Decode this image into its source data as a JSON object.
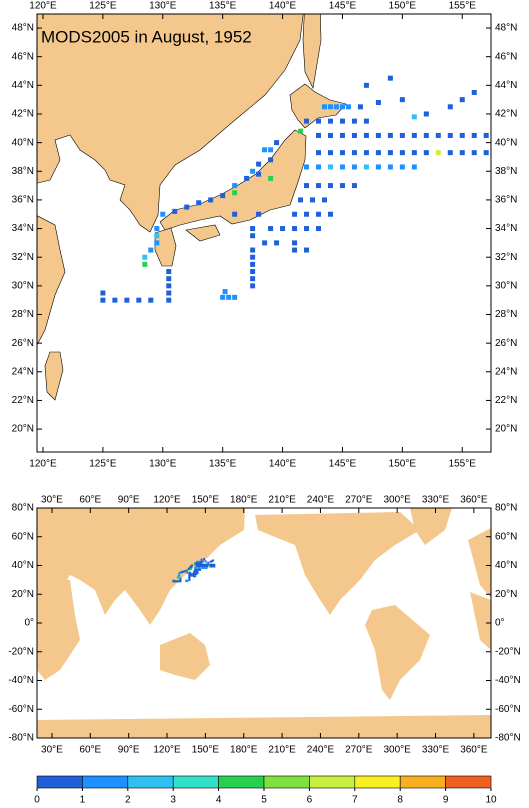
{
  "title": "MODS2005 in August, 1952",
  "top_map": {
    "lon_range": [
      119.5,
      157.4
    ],
    "lat_range": [
      18.4,
      48.98
    ],
    "lon_ticks": [
      {
        "value": 120,
        "label": "120°E"
      },
      {
        "value": 125,
        "label": "125°E"
      },
      {
        "value": 130,
        "label": "130°E"
      },
      {
        "value": 135,
        "label": "135°E"
      },
      {
        "value": 140,
        "label": "140°E"
      },
      {
        "value": 145,
        "label": "145°E"
      },
      {
        "value": 150,
        "label": "150°E"
      },
      {
        "value": 155,
        "label": "155°E"
      }
    ],
    "lat_ticks": [
      {
        "value": 20,
        "label": "20°N"
      },
      {
        "value": 22,
        "label": "22°N"
      },
      {
        "value": 24,
        "label": "24°N"
      },
      {
        "value": 26,
        "label": "26°N"
      },
      {
        "value": 28,
        "label": "28°N"
      },
      {
        "value": 30,
        "label": "30°N"
      },
      {
        "value": 32,
        "label": "32°N"
      },
      {
        "value": 34,
        "label": "34°N"
      },
      {
        "value": 36,
        "label": "36°N"
      },
      {
        "value": 38,
        "label": "38°N"
      },
      {
        "value": 40,
        "label": "40°N"
      },
      {
        "value": 42,
        "label": "42°N"
      },
      {
        "value": 44,
        "label": "44°N"
      },
      {
        "value": 46,
        "label": "46°N"
      },
      {
        "value": 48,
        "label": "48°N"
      }
    ]
  },
  "bottom_map": {
    "lon_range": [
      18.3,
      373.4
    ],
    "lat_range": [
      -80,
      80
    ],
    "lon_ticks": [
      {
        "value": 30,
        "label": "30°E"
      },
      {
        "value": 60,
        "label": "60°E"
      },
      {
        "value": 90,
        "label": "90°E"
      },
      {
        "value": 120,
        "label": "120°E"
      },
      {
        "value": 150,
        "label": "150°E"
      },
      {
        "value": 180,
        "label": "180°E"
      },
      {
        "value": 210,
        "label": "210°E"
      },
      {
        "value": 240,
        "label": "240°E"
      },
      {
        "value": 270,
        "label": "270°E"
      },
      {
        "value": 300,
        "label": "300°E"
      },
      {
        "value": 330,
        "label": "330°E"
      },
      {
        "value": 360,
        "label": "360°E"
      }
    ],
    "lat_ticks": [
      {
        "value": -80,
        "label": "-80°N"
      },
      {
        "value": -60,
        "label": "-60°N"
      },
      {
        "value": -40,
        "label": "-40°N"
      },
      {
        "value": -20,
        "label": "-20°N"
      },
      {
        "value": 0,
        "label": "0°"
      },
      {
        "value": 20,
        "label": "20°N"
      },
      {
        "value": 40,
        "label": "40°N"
      },
      {
        "value": 60,
        "label": "60°N"
      },
      {
        "value": 80,
        "label": "80°N"
      }
    ]
  },
  "colorbar": {
    "levels": [
      0,
      1,
      2,
      3,
      4,
      5,
      6,
      7,
      8,
      9,
      10
    ],
    "colors": [
      "#1f5fd8",
      "#1e90ff",
      "#30c0f0",
      "#30e0c8",
      "#28d050",
      "#80e040",
      "#c8f040",
      "#f8f020",
      "#f8b020",
      "#f06020"
    ]
  },
  "observations": [
    [
      143,
      40.5,
      0.5
    ],
    [
      144,
      40.5,
      0.5
    ],
    [
      145,
      40.5,
      0.5
    ],
    [
      146,
      40.5,
      0.5
    ],
    [
      147,
      40.5,
      0.5
    ],
    [
      148,
      40.5,
      0.5
    ],
    [
      149,
      40.5,
      0.5
    ],
    [
      150,
      40.5,
      0.5
    ],
    [
      151,
      40.5,
      0.5
    ],
    [
      152,
      40.5,
      0.5
    ],
    [
      153,
      40.5,
      0.5
    ],
    [
      154,
      40.5,
      0.5
    ],
    [
      155,
      40.5,
      0.5
    ],
    [
      156,
      40.5,
      0.5
    ],
    [
      157,
      40.5,
      0.5
    ],
    [
      143,
      39.3,
      0.5
    ],
    [
      144,
      39.3,
      0.5
    ],
    [
      145,
      39.3,
      0.5
    ],
    [
      146,
      39.3,
      0.5
    ],
    [
      147,
      39.3,
      0.5
    ],
    [
      148,
      39.3,
      0.5
    ],
    [
      149,
      39.3,
      0.5
    ],
    [
      150,
      39.3,
      0.5
    ],
    [
      151,
      39.3,
      0.5
    ],
    [
      152,
      39.3,
      0.5
    ],
    [
      153,
      39.3,
      6.5
    ],
    [
      154,
      39.3,
      0.5
    ],
    [
      155,
      39.3,
      0.5
    ],
    [
      156,
      39.3,
      0.5
    ],
    [
      157,
      39.3,
      0.5
    ],
    [
      142,
      38.3,
      1.5
    ],
    [
      143,
      38.3,
      1.5
    ],
    [
      144,
      38.3,
      2.5
    ],
    [
      145,
      38.3,
      1.5
    ],
    [
      146,
      38.3,
      1.5
    ],
    [
      147,
      38.3,
      2.5
    ],
    [
      148,
      38.3,
      1.5
    ],
    [
      149,
      38.3,
      1.5
    ],
    [
      150,
      38.3,
      1.5
    ],
    [
      151,
      38.3,
      1.5
    ],
    [
      143.5,
      42.5,
      1.5
    ],
    [
      144,
      42.5,
      1.5
    ],
    [
      144.5,
      42.5,
      1.5
    ],
    [
      145,
      42.5,
      1.5
    ],
    [
      145.5,
      42.5,
      1.5
    ],
    [
      146.5,
      42.5,
      0.5
    ],
    [
      142,
      41.5,
      0.5
    ],
    [
      143,
      41.5,
      0.5
    ],
    [
      144,
      41.5,
      0.5
    ],
    [
      145,
      41.5,
      0.5
    ],
    [
      146,
      41.5,
      0.5
    ],
    [
      147,
      41.5,
      0.5
    ],
    [
      147,
      44,
      0.5
    ],
    [
      149,
      44.5,
      0.5
    ],
    [
      150,
      43,
      0.5
    ],
    [
      152,
      42,
      0.5
    ],
    [
      154,
      42.5,
      0.5
    ],
    [
      155,
      43,
      0.5
    ],
    [
      156,
      43.5,
      0.5
    ],
    [
      148,
      42.8,
      0.5
    ],
    [
      151,
      41.8,
      2.5
    ],
    [
      142,
      37,
      0.5
    ],
    [
      143,
      37,
      0.5
    ],
    [
      144,
      37,
      0.5
    ],
    [
      145,
      37,
      0.5
    ],
    [
      146,
      37,
      0.5
    ],
    [
      141.5,
      36,
      0.5
    ],
    [
      142.5,
      36,
      0.5
    ],
    [
      143.5,
      36,
      0.5
    ],
    [
      141,
      35,
      0.5
    ],
    [
      142,
      35,
      0.5
    ],
    [
      143,
      35,
      0.5
    ],
    [
      144,
      35,
      0.5
    ],
    [
      139,
      34,
      0.5
    ],
    [
      140,
      34,
      0.5
    ],
    [
      141,
      34,
      0.5
    ],
    [
      142,
      34,
      0.5
    ],
    [
      143,
      34,
      0.5
    ],
    [
      138.5,
      33,
      0.5
    ],
    [
      139.5,
      33,
      0.5
    ],
    [
      141,
      33,
      0.5
    ],
    [
      137.5,
      32,
      0.5
    ],
    [
      141,
      32.5,
      0.5
    ],
    [
      142,
      32.5,
      0.5
    ],
    [
      137.5,
      34,
      0.5
    ],
    [
      137.5,
      33.5,
      0.5
    ],
    [
      137.5,
      32.5,
      0.5
    ],
    [
      137.5,
      31.5,
      0.5
    ],
    [
      137.5,
      31,
      0.5
    ],
    [
      137.5,
      30.5,
      0.5
    ],
    [
      137.5,
      30,
      0.5
    ],
    [
      135,
      29.2,
      1.5
    ],
    [
      135.5,
      29.2,
      1.5
    ],
    [
      136,
      29.2,
      1.5
    ],
    [
      135.2,
      29.6,
      1.5
    ],
    [
      137.5,
      38,
      1.5
    ],
    [
      138,
      38.5,
      0.5
    ],
    [
      138.5,
      39.5,
      1.5
    ],
    [
      139,
      39.5,
      1.5
    ],
    [
      139,
      38.8,
      0.5
    ],
    [
      138,
      37.8,
      0.5
    ],
    [
      137,
      37.5,
      0.5
    ],
    [
      136,
      37,
      1.5
    ],
    [
      135,
      36.3,
      0.5
    ],
    [
      134,
      36,
      0.5
    ],
    [
      133,
      35.8,
      0.5
    ],
    [
      132,
      35.5,
      0.5
    ],
    [
      131,
      35.2,
      0.5
    ],
    [
      130,
      35,
      1.5
    ],
    [
      129.5,
      34,
      1.5
    ],
    [
      129.5,
      33.5,
      2.5
    ],
    [
      129.5,
      33,
      1.5
    ],
    [
      129,
      32.5,
      1.5
    ],
    [
      128.5,
      32,
      2.5
    ],
    [
      128.5,
      31.5,
      4.5
    ],
    [
      130.5,
      31,
      0.5
    ],
    [
      130.5,
      30.5,
      0.5
    ],
    [
      130.5,
      30,
      0.5
    ],
    [
      130.5,
      29.5,
      0.5
    ],
    [
      130.5,
      29,
      0.5
    ],
    [
      129,
      29,
      0.5
    ],
    [
      128,
      29,
      0.5
    ],
    [
      127,
      29,
      0.5
    ],
    [
      126,
      29,
      0.5
    ],
    [
      125,
      29,
      0.5
    ],
    [
      125,
      29.5,
      0.5
    ],
    [
      136,
      36.5,
      4.5
    ],
    [
      139,
      37.5,
      4.5
    ],
    [
      139.5,
      40,
      0.5
    ],
    [
      136,
      35,
      0.5
    ],
    [
      138,
      35,
      0.5
    ],
    [
      141.5,
      40.8,
      4.5
    ]
  ]
}
